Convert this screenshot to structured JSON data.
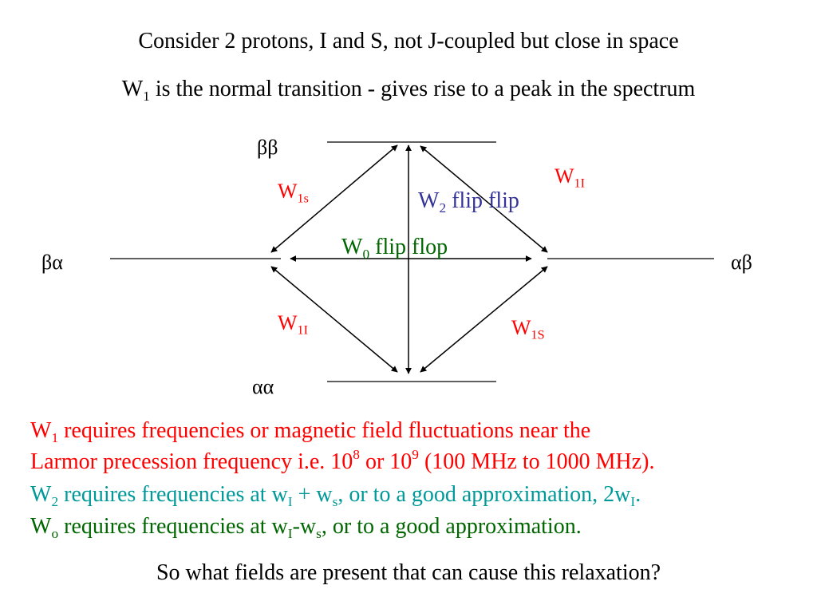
{
  "header": {
    "line1": "Consider 2 protons, I and S, not J-coupled but close in space",
    "line2_main": "W",
    "line2_sub": "1",
    "line2_rest": " is the normal transition - gives rise to a peak in the spectrum"
  },
  "diagram": {
    "levels": {
      "bb": "ββ",
      "ba": "βα",
      "ab": "αβ",
      "aa": "αα"
    },
    "transitions": {
      "w1s_top": {
        "main": "W",
        "sub": "1s"
      },
      "w1i_top": {
        "main": "W",
        "sub": "1I"
      },
      "w2": {
        "main": "W",
        "sub": "2",
        "rest": " flip flip"
      },
      "w0": {
        "main": "W",
        "sub": "0",
        "rest": " flip flop"
      },
      "w1i_bottom": {
        "main": "W",
        "sub": "1I"
      },
      "w1s_bottom": {
        "main": "W",
        "sub": "1S"
      }
    }
  },
  "notes": {
    "w1_line1": {
      "main": "W",
      "sub": "1",
      "rest": " requires frequencies or magnetic field fluctuations near the"
    },
    "w1_line2": {
      "a": "Larmor precession frequency i.e. 10",
      "sup1": "8",
      "b": " or 10",
      "sup2": "9",
      "c": " (100 MHz to 1000 MHz)."
    },
    "w2_line": {
      "main": "W",
      "sub": "2",
      "a": " requires frequencies at w",
      "sub2": "I",
      "b": " + w",
      "sub3": "s",
      "c": ", or to a good approximation, 2w",
      "sub4": "I",
      "d": "."
    },
    "w0_line": {
      "main": "W",
      "sub": "o",
      "a": " requires frequencies at w",
      "sub2": "I",
      "b": "-w",
      "sub3": "s",
      "c": ", or to a good approximation."
    },
    "question": "So what fields are present that can cause this relaxation?"
  },
  "colors": {
    "w1": "#ff0000",
    "w2_label": "#333399",
    "w0": "#006600",
    "w2_note": "#009999"
  }
}
